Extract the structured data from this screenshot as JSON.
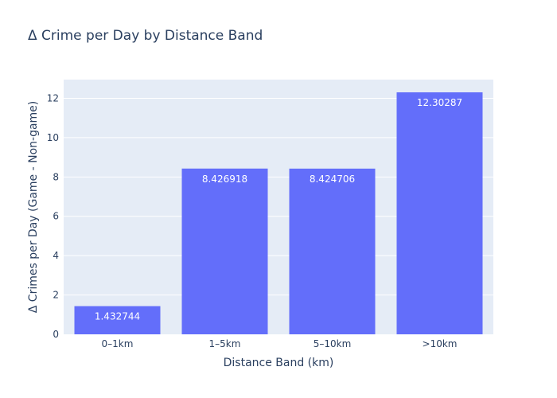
{
  "chart_data": {
    "type": "bar",
    "title": "Δ Crime per Day by Distance Band",
    "xlabel": "Distance Band (km)",
    "ylabel": "Δ Crimes per Day (Game - Non-game)",
    "categories": [
      "0–1km",
      "1–5km",
      "5–10km",
      ">10km"
    ],
    "values": [
      1.432744,
      8.426918,
      8.424706,
      12.30287
    ],
    "data_labels": [
      "1.432744",
      "8.426918",
      "8.424706",
      "12.30287"
    ],
    "ylim": [
      0,
      12.95
    ],
    "yticks": [
      0,
      2,
      4,
      6,
      8,
      10,
      12
    ],
    "grid": true,
    "colors": {
      "bar": "#636efa",
      "plot_bg": "#e5ecf6",
      "grid": "#ffffff",
      "text": "#2a3f5f"
    }
  }
}
